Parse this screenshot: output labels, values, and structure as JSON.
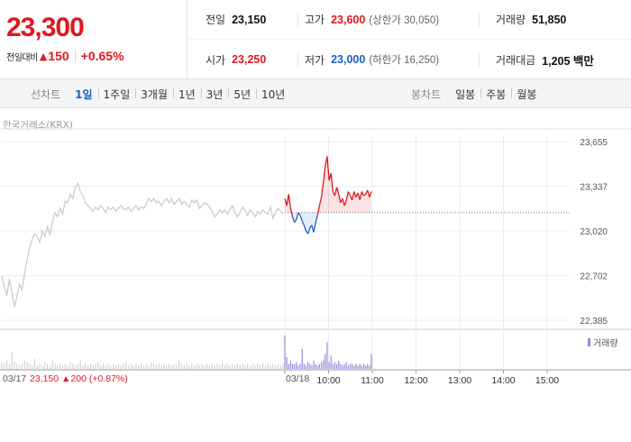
{
  "summary": {
    "price": "23,300",
    "change_label": "전일대비",
    "change_value": "150",
    "change_pct": "+0.65%",
    "prev_close_label": "전일",
    "prev_close": "23,150",
    "high_label": "고가",
    "high": "23,600",
    "upper_limit": "(상한가 30,050)",
    "volume_label": "거래량",
    "volume": "51,850",
    "open_label": "시가",
    "open": "23,250",
    "low_label": "저가",
    "low": "23,000",
    "lower_limit": "(하한가 16,250)",
    "amount_label": "거래대금",
    "amount": "1,205 백만"
  },
  "tabs": {
    "line_title": "선차트",
    "line_items": [
      "1일",
      "1주일",
      "3개월",
      "1년",
      "3년",
      "5년",
      "10년"
    ],
    "candle_title": "봉차트",
    "candle_items": [
      "일봉",
      "주봉",
      "월봉"
    ]
  },
  "source": "한국거래소(KRX)",
  "footer": {
    "prev_date": "03/17",
    "prev_info": "23,150 ▲200 (+0.87%)",
    "today_date": "03/18"
  },
  "colors": {
    "up": "#e0181e",
    "down": "#1a5fc8",
    "prev_day_line": "#c8c8c8",
    "volume": "#9b8ad8"
  },
  "chart_data": {
    "type": "line",
    "ylim": [
      22385,
      23655
    ],
    "yticks": [
      23655,
      23337,
      23020,
      22702,
      22385
    ],
    "ytick_labels": [
      "23,655",
      "23,337",
      "23,020",
      "22,702",
      "22,385"
    ],
    "xtick_labels": [
      "10:00",
      "11:00",
      "12:00",
      "13:00",
      "14:00",
      "15:00"
    ],
    "base_price": 23150,
    "volume_legend": "거래량",
    "prev_day_series": [
      22700,
      22620,
      22560,
      22680,
      22580,
      22480,
      22560,
      22640,
      22600,
      22720,
      22820,
      22900,
      22960,
      23000,
      22980,
      22940,
      23020,
      22980,
      23050,
      22990,
      23080,
      23150,
      23120,
      23180,
      23140,
      23230,
      23220,
      23280,
      23250,
      23330,
      23360,
      23300,
      23270,
      23220,
      23200,
      23180,
      23160,
      23190,
      23170,
      23200,
      23180,
      23150,
      23190,
      23170,
      23190,
      23160,
      23180,
      23200,
      23180,
      23170,
      23190,
      23160,
      23180,
      23200,
      23170,
      23190,
      23180,
      23210,
      23250,
      23230,
      23250,
      23220,
      23230,
      23200,
      23230,
      23250,
      23220,
      23250,
      23210,
      23230,
      23250,
      23210,
      23230,
      23210,
      23190,
      23240,
      23220,
      23240,
      23180,
      23200,
      23220,
      23210,
      23190,
      23160,
      23120,
      23140,
      23170,
      23150,
      23170,
      23140,
      23170,
      23200,
      23150,
      23120,
      23150,
      23190,
      23170,
      23130,
      23170,
      23150,
      23120,
      23160,
      23140,
      23170,
      23150,
      23140,
      23190,
      23110,
      23150,
      23180,
      23160,
      23140
    ],
    "today_series": [
      23250,
      23200,
      23280,
      23180,
      23120,
      23080,
      23100,
      23150,
      23130,
      23090,
      23060,
      23020,
      23000,
      23040,
      23060,
      23010,
      23080,
      23130,
      23200,
      23260,
      23360,
      23480,
      23550,
      23380,
      23430,
      23300,
      23270,
      23330,
      23280,
      23220,
      23250,
      23200,
      23240,
      23300,
      23270,
      23240,
      23300,
      23260,
      23290,
      23240,
      23300,
      23270,
      23280,
      23310,
      23260,
      23300
    ],
    "prev_day_volume": [
      4,
      3,
      5,
      3,
      10,
      4,
      3,
      2,
      3,
      5,
      4,
      3,
      2,
      6,
      2,
      3,
      2,
      4,
      3,
      2,
      5,
      3,
      2,
      3,
      2,
      3,
      2,
      4,
      3,
      2,
      3,
      5,
      2,
      3,
      2,
      3,
      2,
      3,
      4,
      2,
      3,
      2,
      3,
      2,
      3,
      2,
      3,
      2,
      3,
      4,
      2,
      3,
      2,
      3,
      2,
      3,
      2,
      3,
      2,
      4,
      3,
      2,
      3,
      2,
      3,
      2,
      3,
      2,
      3,
      2,
      5,
      3,
      2,
      3,
      2,
      3,
      2,
      3,
      2,
      3,
      2,
      3,
      2,
      3,
      2,
      3,
      2,
      3,
      2,
      3,
      2,
      3,
      2,
      3,
      2,
      3,
      2,
      3,
      2,
      3,
      2,
      3,
      2,
      3,
      2,
      3,
      2,
      3,
      2,
      3,
      2,
      3
    ],
    "today_volume": [
      20,
      7,
      3,
      5,
      3,
      3,
      4,
      2,
      3,
      12,
      3,
      2,
      4,
      3,
      2,
      5,
      3,
      2,
      3,
      4,
      5,
      9,
      16,
      4,
      8,
      3,
      4,
      3,
      5,
      3,
      2,
      3,
      4,
      2,
      3,
      3,
      2,
      3,
      2,
      3,
      2,
      3,
      2,
      3,
      2,
      9
    ]
  }
}
